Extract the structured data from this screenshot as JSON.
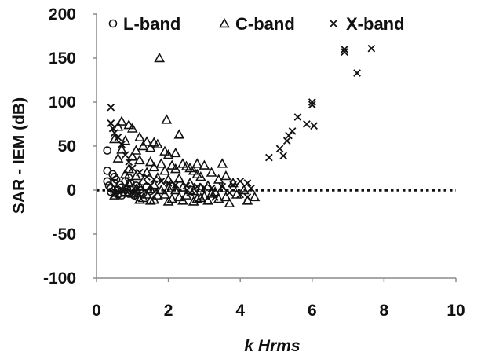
{
  "chart_data": {
    "type": "scatter",
    "xlabel": "k Hrms",
    "ylabel": "SAR - IEM (dB)",
    "xlim": [
      0,
      10
    ],
    "ylim": [
      -100,
      200
    ],
    "x_ticks": [
      "0",
      "2",
      "4",
      "6",
      "8",
      "10"
    ],
    "y_ticks": [
      "-100",
      "-50",
      "0",
      "50",
      "100",
      "150",
      "200"
    ],
    "grid": false,
    "legend_position": "top",
    "reference_line": {
      "y": 0,
      "style": "dotted"
    },
    "series": [
      {
        "name": "L-band",
        "marker": "circle",
        "points": [
          [
            0.3,
            45
          ],
          [
            0.3,
            22
          ],
          [
            0.3,
            10
          ],
          [
            0.35,
            5
          ],
          [
            0.4,
            2
          ],
          [
            0.45,
            18
          ],
          [
            0.5,
            8
          ],
          [
            0.5,
            -3
          ],
          [
            0.55,
            12
          ],
          [
            0.6,
            0
          ],
          [
            0.6,
            -5
          ],
          [
            0.65,
            6
          ],
          [
            0.7,
            3
          ],
          [
            0.75,
            -2
          ],
          [
            0.8,
            10
          ],
          [
            0.85,
            1
          ],
          [
            0.9,
            -4
          ],
          [
            0.95,
            8
          ],
          [
            1.0,
            2
          ],
          [
            1.05,
            -6
          ],
          [
            1.1,
            5
          ],
          [
            1.2,
            0
          ],
          [
            1.3,
            -3
          ],
          [
            1.4,
            4
          ],
          [
            1.5,
            -1
          ],
          [
            0.4,
            -2
          ],
          [
            0.5,
            15
          ],
          [
            0.7,
            -6
          ],
          [
            0.9,
            14
          ],
          [
            1.15,
            -8
          ]
        ]
      },
      {
        "name": "C-band",
        "marker": "triangle",
        "points": [
          [
            1.75,
            150
          ],
          [
            1.95,
            80
          ],
          [
            0.7,
            78
          ],
          [
            0.9,
            74
          ],
          [
            0.6,
            72
          ],
          [
            1.0,
            70
          ],
          [
            2.3,
            63
          ],
          [
            1.2,
            60
          ],
          [
            0.5,
            58
          ],
          [
            0.8,
            56
          ],
          [
            1.4,
            55
          ],
          [
            1.6,
            54
          ],
          [
            1.7,
            52
          ],
          [
            1.3,
            50
          ],
          [
            1.5,
            48
          ],
          [
            0.7,
            46
          ],
          [
            1.1,
            45
          ],
          [
            1.9,
            44
          ],
          [
            2.2,
            42
          ],
          [
            2.0,
            40
          ],
          [
            1.0,
            38
          ],
          [
            0.6,
            36
          ],
          [
            1.2,
            34
          ],
          [
            1.5,
            32
          ],
          [
            1.8,
            30
          ],
          [
            2.4,
            30
          ],
          [
            2.8,
            30
          ],
          [
            3.0,
            28
          ],
          [
            3.5,
            30
          ],
          [
            2.5,
            27
          ],
          [
            2.6,
            25
          ],
          [
            2.2,
            24
          ],
          [
            1.9,
            22
          ],
          [
            2.7,
            22
          ],
          [
            3.2,
            20
          ],
          [
            1.4,
            20
          ],
          [
            0.8,
            18
          ],
          [
            1.1,
            16
          ],
          [
            3.6,
            16
          ],
          [
            2.9,
            15
          ],
          [
            1.7,
            14
          ],
          [
            2.3,
            13
          ],
          [
            3.4,
            12
          ],
          [
            2.0,
            12
          ],
          [
            1.3,
            10
          ],
          [
            0.9,
            8
          ],
          [
            2.6,
            8
          ],
          [
            3.8,
            8
          ],
          [
            1.6,
            6
          ],
          [
            2.1,
            5
          ],
          [
            3.1,
            5
          ],
          [
            1.2,
            4
          ],
          [
            2.4,
            3
          ],
          [
            2.9,
            2
          ],
          [
            3.5,
            2
          ],
          [
            1.5,
            1
          ],
          [
            1.8,
            0
          ],
          [
            2.2,
            0
          ],
          [
            2.7,
            -1
          ],
          [
            3.3,
            -2
          ],
          [
            0.7,
            -3
          ],
          [
            1.0,
            -4
          ],
          [
            1.4,
            -5
          ],
          [
            1.9,
            -5
          ],
          [
            2.5,
            -6
          ],
          [
            3.0,
            -7
          ],
          [
            3.6,
            -8
          ],
          [
            1.3,
            -9
          ],
          [
            2.1,
            -10
          ],
          [
            2.8,
            -10
          ],
          [
            1.6,
            -11
          ],
          [
            2.4,
            -12
          ],
          [
            3.7,
            -15
          ],
          [
            4.2,
            -12
          ],
          [
            4.4,
            -8
          ],
          [
            0.5,
            -6
          ],
          [
            0.8,
            -2
          ],
          [
            1.1,
            1
          ],
          [
            2.0,
            2
          ],
          [
            2.6,
            0
          ],
          [
            3.2,
            -4
          ],
          [
            3.9,
            -5
          ],
          [
            4.1,
            0
          ],
          [
            1.7,
            -6
          ],
          [
            2.3,
            -8
          ],
          [
            2.9,
            -9
          ],
          [
            3.4,
            -10
          ],
          [
            1.2,
            -11
          ],
          [
            2.0,
            -13
          ],
          [
            2.7,
            -13
          ],
          [
            1.5,
            -12
          ],
          [
            3.1,
            -12
          ],
          [
            0.9,
            24
          ],
          [
            1.6,
            26
          ],
          [
            2.1,
            28
          ],
          [
            2.8,
            18
          ]
        ]
      },
      {
        "name": "X-band",
        "marker": "cross",
        "points": [
          [
            0.4,
            94
          ],
          [
            0.4,
            76
          ],
          [
            0.45,
            70
          ],
          [
            0.5,
            65
          ],
          [
            0.6,
            60
          ],
          [
            0.7,
            52
          ],
          [
            0.8,
            40
          ],
          [
            0.9,
            32
          ],
          [
            1.0,
            25
          ],
          [
            1.2,
            20
          ],
          [
            1.4,
            15
          ],
          [
            1.6,
            12
          ],
          [
            1.8,
            10
          ],
          [
            2.0,
            8
          ],
          [
            2.2,
            6
          ],
          [
            2.5,
            5
          ],
          [
            2.8,
            4
          ],
          [
            3.0,
            3
          ],
          [
            3.2,
            2
          ],
          [
            3.5,
            4
          ],
          [
            3.8,
            6
          ],
          [
            4.0,
            10
          ],
          [
            4.2,
            8
          ],
          [
            4.3,
            2
          ],
          [
            3.7,
            -3
          ],
          [
            4.0,
            -5
          ],
          [
            4.2,
            -8
          ],
          [
            4.8,
            37
          ],
          [
            5.1,
            47
          ],
          [
            5.2,
            39
          ],
          [
            5.3,
            56
          ],
          [
            5.35,
            62
          ],
          [
            5.45,
            67
          ],
          [
            5.6,
            83
          ],
          [
            5.85,
            75
          ],
          [
            6.0,
            100
          ],
          [
            6.0,
            97
          ],
          [
            6.05,
            73
          ],
          [
            6.9,
            160
          ],
          [
            6.9,
            157
          ],
          [
            7.25,
            133
          ],
          [
            7.65,
            161
          ],
          [
            0.5,
            -5
          ],
          [
            0.8,
            0
          ],
          [
            1.1,
            -2
          ],
          [
            1.5,
            5
          ],
          [
            2.6,
            -3
          ],
          [
            3.3,
            -8
          ]
        ]
      }
    ]
  }
}
